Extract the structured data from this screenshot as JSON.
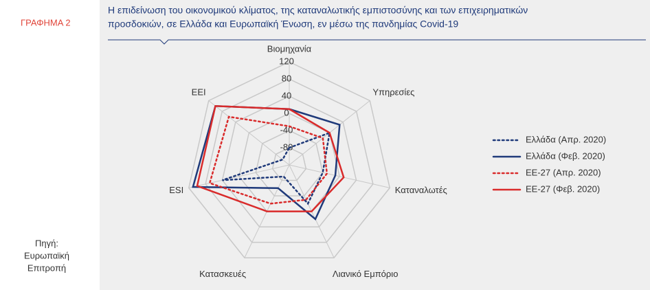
{
  "figure_label": "ΓΡΑΦΗΜΑ 2",
  "source": [
    "Πηγή:",
    "Ευρωπαϊκή",
    "Επιτροπή"
  ],
  "chart_data": {
    "type": "radar",
    "title": [
      "Η επιδείνωση του οικονομικού κλίματος, της καταναλωτικής εμπιστοσύνης και των επιχειρηματικών",
      "προσδοκιών, σε Ελλάδα και Ευρωπαϊκή Ένωση, εν μέσω της πανδημίας Covid-19"
    ],
    "categories": [
      "Βιομηχανία",
      "Υπηρεσίες",
      "Καταναλωτές",
      "Λιανικό Εμπόριο",
      "Κατασκευές",
      "ESI",
      "ΕΕΙ"
    ],
    "rlim": [
      -120,
      120
    ],
    "rticks": [
      120,
      80,
      40,
      0,
      -40,
      -80
    ],
    "legend": "right",
    "series": [
      {
        "name": "Ελλάδα (Απρ. 2020)",
        "color": "#1f3a7a",
        "style": "dotted",
        "values": [
          -80,
          0,
          -40,
          -20,
          -90,
          40,
          -100
        ]
      },
      {
        "name": "Ελλάδα (Φεβ. 2020)",
        "color": "#1f3a7a",
        "style": "solid",
        "values": [
          10,
          30,
          -10,
          20,
          -60,
          110,
          100
        ]
      },
      {
        "name": "ΕΕ-27 (Απρ. 2020)",
        "color": "#d92b2b",
        "style": "dotted",
        "values": [
          -30,
          -20,
          -30,
          -30,
          -20,
          70,
          60
        ]
      },
      {
        "name": "ΕΕ-27 (Φεβ. 2020)",
        "color": "#d92b2b",
        "style": "solid",
        "values": [
          10,
          0,
          10,
          0,
          0,
          100,
          100
        ]
      }
    ]
  }
}
